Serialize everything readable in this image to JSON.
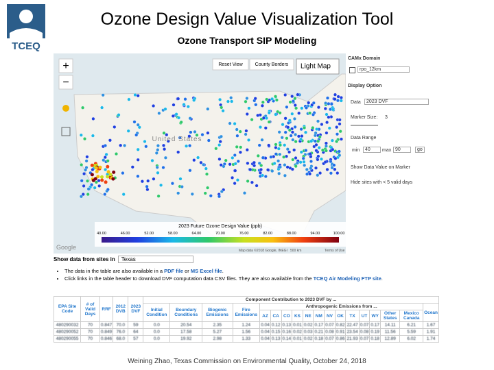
{
  "header": {
    "logo": "TCEQ",
    "title": "Ozone Design Value Visualization Tool",
    "subtitle": "Ozone Transport SIP Modeling"
  },
  "map": {
    "zoom_in": "+",
    "zoom_out": "−",
    "reset_view": "Reset View",
    "county_borders": "County Borders",
    "map_style": "Light Map",
    "country_label": "United States",
    "legend_title": "2023 Future Ozone Design Value (ppb)",
    "legend_ticks": [
      "40.00",
      "46.00",
      "52.00",
      "58.00",
      "64.00",
      "70.00",
      "76.00",
      "82.00",
      "88.00",
      "94.00",
      "100.00"
    ],
    "google": "Google",
    "attribution": "Map data ©2018 Google, INEGI",
    "scale": "500 km",
    "terms": "Terms of Use"
  },
  "sidebar": {
    "domain_label": "CAMx Domain",
    "domain_value": "rpo_12km",
    "display_label": "Display Option",
    "data_label": "Data",
    "data_value": "2023 DVF",
    "marker_label": "Marker Size:",
    "marker_value": "3",
    "range_label": "Data Range",
    "min_label": "min",
    "min_value": "40",
    "max_label": "max",
    "max_value": "90",
    "go": "go",
    "show_values": "Show Data Value on Marker",
    "hide_sites": "Hide sites with < 5 valid days"
  },
  "filter": {
    "label": "Show data from sites in",
    "value": "Texas"
  },
  "notes": [
    [
      "The data in the table are also available in a ",
      "PDF file",
      " or ",
      "MS Excel file",
      "."
    ],
    [
      "Click links in the table header to download DVF computation data CSV files. They are also available from the ",
      "TCEQ Air Modeling FTP site",
      "."
    ]
  ],
  "table": {
    "group_header": "Component Contribution to 2023 DVF by ...",
    "anthro_header": "Anthropogenic Emissions from ...",
    "lead_columns": [
      "EPA Site Code",
      "# of Valid Days",
      "RRF",
      "2012 DVB",
      "2023 DVF"
    ],
    "source_columns": [
      "Initial Condition",
      "Boundary Conditions",
      "Biogenic Emissions",
      "Fire Emissions"
    ],
    "anthro_columns": [
      "AZ",
      "CA",
      "CO",
      "KS",
      "NE",
      "NM",
      "NV",
      "OK",
      "TX",
      "UT",
      "WY",
      "Other States",
      "Mexico Canada"
    ],
    "last_column": "Ocean",
    "rows": [
      [
        "480290032",
        "70",
        "0.847",
        "70.0",
        "59",
        "0.0",
        "20.54",
        "2.35",
        "1.24",
        "0.04",
        "0.12",
        "0.13",
        "0.01",
        "0.02",
        "0.17",
        "0.07",
        "0.82",
        "22.47",
        "0.07",
        "0.17",
        "14.11",
        "6.21",
        "1.67"
      ],
      [
        "480290052",
        "70",
        "0.849",
        "76.0",
        "64",
        "0.0",
        "17.58",
        "5.27",
        "1.56",
        "0.04",
        "0.15",
        "0.16",
        "0.02",
        "0.03",
        "0.21",
        "0.08",
        "0.91",
        "23.54",
        "0.08",
        "0.19",
        "11.56",
        "5.59",
        "1.91"
      ],
      [
        "480290055",
        "70",
        "0.846",
        "68.0",
        "57",
        "0.0",
        "19.92",
        "2.98",
        "1.33",
        "0.04",
        "0.13",
        "0.14",
        "0.01",
        "0.02",
        "0.18",
        "0.07",
        "0.86",
        "21.93",
        "0.07",
        "0.18",
        "12.89",
        "6.02",
        "1.74"
      ]
    ]
  },
  "footer": "Weining Zhao, Texas Commission on Environmental Quality, October 24, 2018"
}
